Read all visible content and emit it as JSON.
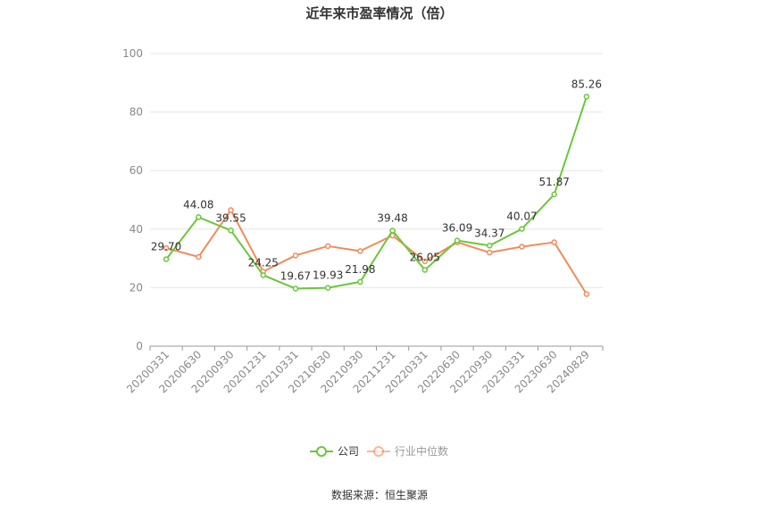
{
  "chart_data": {
    "type": "line",
    "title": "近年来市盈率情况（倍）",
    "categories": [
      "20200331",
      "20200630",
      "20200930",
      "20201231",
      "20210331",
      "20210630",
      "20210930",
      "20211231",
      "20220331",
      "20220630",
      "20220930",
      "20230331",
      "20230630",
      "20240829"
    ],
    "series": [
      {
        "name": "公司",
        "color": "#6bc73a",
        "values": [
          29.7,
          44.08,
          39.55,
          24.25,
          19.67,
          19.93,
          21.98,
          39.48,
          26.05,
          36.09,
          34.37,
          40.07,
          51.87,
          85.26
        ],
        "labels": [
          "29.70",
          "44.08",
          "39.55",
          "24.25",
          "19.67",
          "19.93",
          "21.98",
          "39.48",
          "26.05",
          "36.09",
          "34.37",
          "40.07",
          "51.87",
          "85.26"
        ]
      },
      {
        "name": "行业中位数",
        "color": "#f08c5a",
        "values": [
          33.5,
          30.5,
          46.5,
          25.5,
          31.0,
          34.2,
          32.5,
          37.8,
          29.0,
          35.5,
          32.0,
          34.0,
          35.5,
          17.8
        ]
      }
    ],
    "ylim": [
      0,
      100
    ],
    "yticks": [
      "0",
      "20",
      "40",
      "60",
      "80",
      "100"
    ],
    "grid": true,
    "legend_position": "bottom"
  },
  "source_text": "数据来源：恒生聚源"
}
